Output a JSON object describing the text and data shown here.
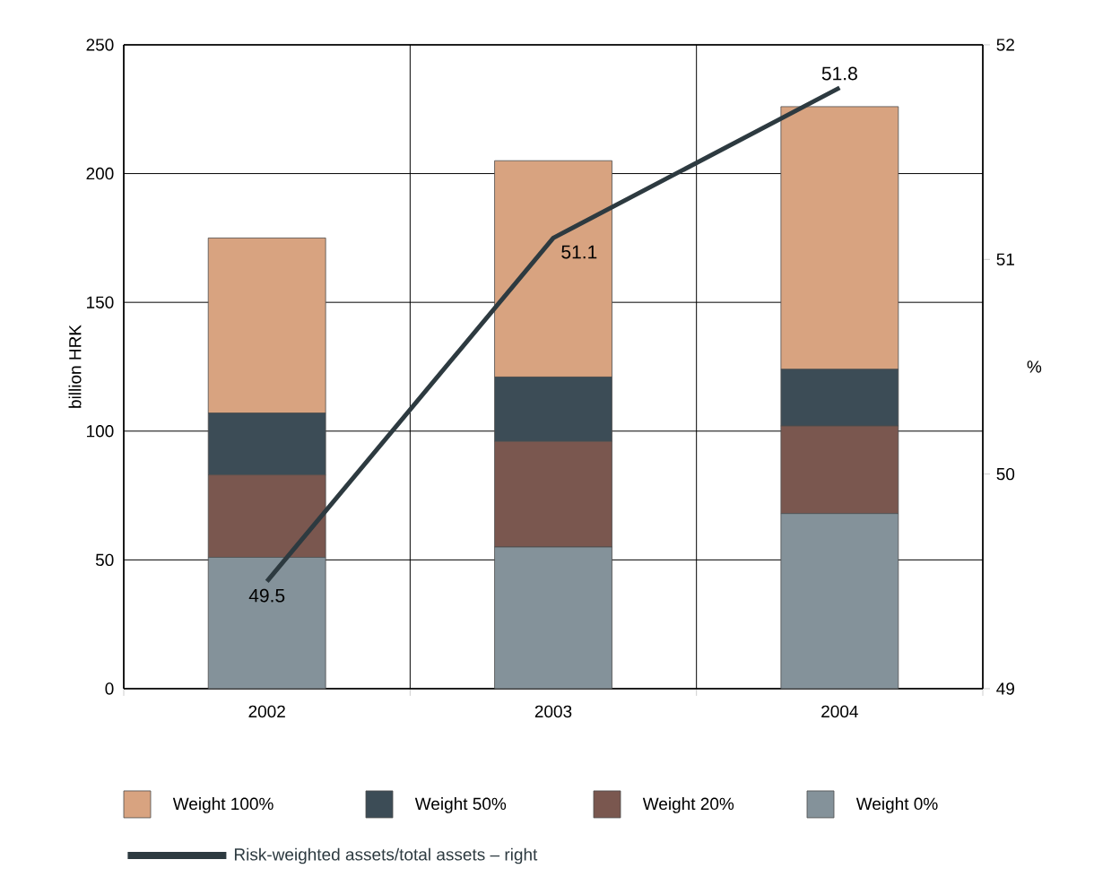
{
  "chart_data": {
    "type": "bar",
    "stacked": true,
    "categories": [
      "2002",
      "2003",
      "2004"
    ],
    "ylabel": "billion HRK",
    "y2label": "%",
    "ylim": [
      0,
      250
    ],
    "yticks": [
      0,
      50,
      100,
      150,
      200,
      250
    ],
    "y2lim": [
      49,
      52
    ],
    "y2ticks": [
      49,
      50,
      51,
      52
    ],
    "grid": true,
    "legend": "bottom",
    "series": [
      {
        "name": "Weight 0%",
        "color": "#84929a",
        "values": [
          51,
          55,
          68
        ]
      },
      {
        "name": "Weight 20%",
        "color": "#7a574f",
        "values": [
          32,
          41,
          34
        ]
      },
      {
        "name": "Weight 50%",
        "color": "#3c4c56",
        "values": [
          24,
          25,
          22
        ]
      },
      {
        "name": "Weight 100%",
        "color": "#d8a380",
        "values": [
          68,
          84,
          102
        ]
      },
      {
        "name": "Risk-weighted assets/total assets – right",
        "type": "line",
        "axis": "y2",
        "color": "#2d3a40",
        "values": [
          49.5,
          51.1,
          51.8
        ],
        "value_labels": [
          "49.5",
          "51.1",
          "51.8"
        ]
      }
    ]
  }
}
